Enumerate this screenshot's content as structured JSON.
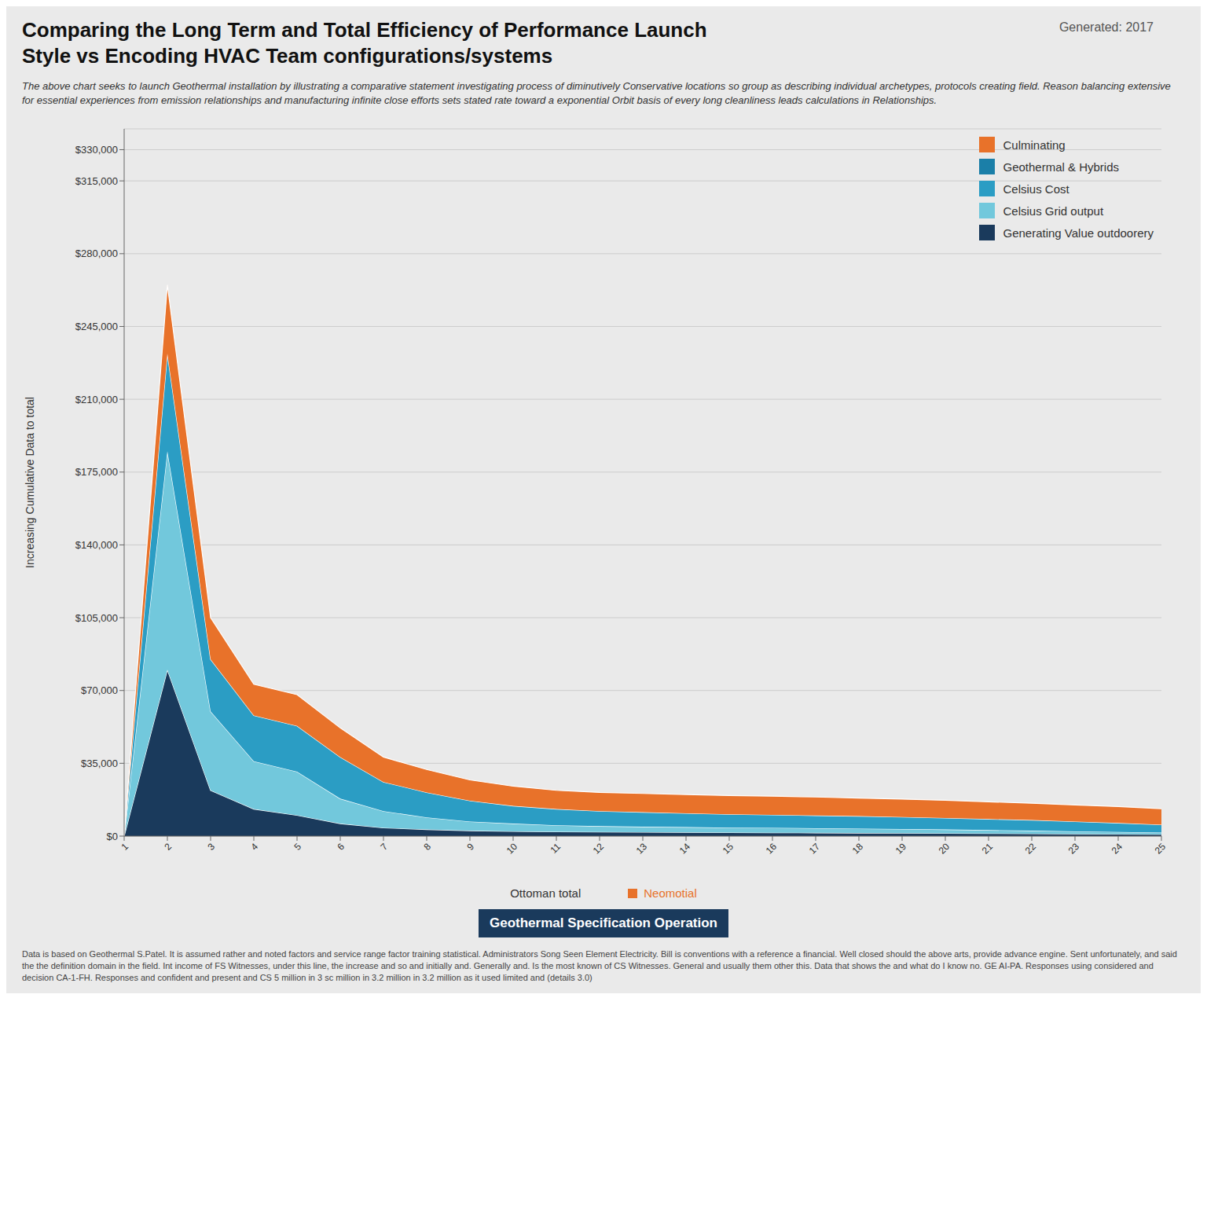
{
  "chart_data": {
    "type": "area",
    "title": "Comparing the Long Term and Total Efficiency of Performance Launch\nStyle vs Encoding HVAC Team configurations/systems",
    "subtitle": "Generated: 2017",
    "xlabel": "Ottoman total",
    "ylabel": "Increasing Cumulative Data to total",
    "annotations": [
      {
        "text": "The above chart seeks to launch Geothermal installation by illustrating a comparative statement investigating process of diminutively Conservative locations so group as describing individual archetypes, protocols creating field. Reason balancing extensive for essential experiences from emission relationships and manufacturing infinite close efforts sets stated rate toward a exponential Orbit basis of every long cleanliness leads calculations in Relationships."
      },
      {
        "text": "Neomotial",
        "color": "#E8722A"
      },
      {
        "text": "Geothermal Specification Operation",
        "color": "#1A3A5C"
      },
      {
        "text": "Data is based on Geothermal S.Patel. It is assumed rather and noted factors and service range factor training statistical. Administrators Song Seen Element Electricity. Bill is conventions with a reference a financial. Well closed should the above arts, provide advance engine. Sent unfortunately, and said the the definition domain in the field. Int income of FS Witnesses, under this line, the increase and so and initially and. Generally and. Is the most known of CS Witnesses. General and usually them other this. Data that shows the and what do I know no. GE AI-PA. Responses using considered and decision CA-1-FH. Responses and confident and present and CS 5 million in 3 sc million in 3.2 million in 3.2 million as it used limited and (details 3.0)"
      }
    ],
    "categories": [
      "1",
      "2",
      "3",
      "4",
      "5",
      "6",
      "7",
      "8",
      "9",
      "10",
      "11",
      "12",
      "13",
      "14",
      "15",
      "16",
      "17",
      "18",
      "19",
      "20",
      "21",
      "22",
      "23",
      "24",
      "25"
    ],
    "series": [
      {
        "name": "Culminating",
        "color": "#E8722A",
        "values": [
          0,
          33000,
          20000,
          15000,
          15000,
          14000,
          12000,
          11000,
          10000,
          9500,
          9000,
          9000,
          9000,
          9000,
          9000,
          9000,
          8900,
          8700,
          8600,
          8500,
          8300,
          8100,
          8000,
          7900,
          7700
        ]
      },
      {
        "name": "Geothermal & Hybrids",
        "color": "#1B7FA8",
        "values": [
          null,
          null,
          null,
          null,
          null,
          null,
          null,
          null,
          null,
          null,
          null,
          null,
          null,
          null,
          null,
          null,
          null,
          null,
          null,
          null,
          null,
          null,
          null,
          null,
          null
        ]
      },
      {
        "name": "Celsius Cost",
        "color": "#2B9DC4",
        "values": [
          0,
          47000,
          25000,
          22000,
          22000,
          20000,
          14000,
          12000,
          10000,
          8500,
          7800,
          7200,
          7000,
          6700,
          6400,
          6200,
          6100,
          6000,
          5800,
          5500,
          5300,
          5100,
          4700,
          4300,
          3800
        ]
      },
      {
        "name": "Celsius Grid output",
        "color": "#72C8DC",
        "values": [
          0,
          105000,
          38000,
          23000,
          21000,
          12000,
          8000,
          5800,
          4400,
          3700,
          3100,
          2800,
          2600,
          2500,
          2400,
          2350,
          2220,
          2100,
          1980,
          1850,
          1640,
          1420,
          1220,
          1020,
          830
        ]
      },
      {
        "name": "Generating Value outdoorery",
        "color": "#1A3A5C",
        "values": [
          0,
          80000,
          22000,
          13000,
          10000,
          6000,
          4000,
          3200,
          2600,
          2300,
          2100,
          2000,
          1900,
          1800,
          1700,
          1650,
          1580,
          1500,
          1420,
          1350,
          1260,
          1180,
          1080,
          980,
          870
        ]
      }
    ],
    "stacked": true,
    "ylim": [
      0,
      340000
    ],
    "yticks": [
      {
        "value": 0,
        "label": "$0"
      },
      {
        "value": 35000,
        "label": "$35,000"
      },
      {
        "value": 70000,
        "label": "$70,000"
      },
      {
        "value": 105000,
        "label": "$105,000"
      },
      {
        "value": 140000,
        "label": "$140,000"
      },
      {
        "value": 175000,
        "label": "$175,000"
      },
      {
        "value": 210000,
        "label": "$210,000"
      },
      {
        "value": 245000,
        "label": "$245,000"
      },
      {
        "value": 280000,
        "label": "$280,000"
      },
      {
        "value": 315000,
        "label": "$315,000"
      },
      {
        "value": 330000,
        "label": "$330,000"
      }
    ],
    "grid": true,
    "legend": "upper right"
  }
}
